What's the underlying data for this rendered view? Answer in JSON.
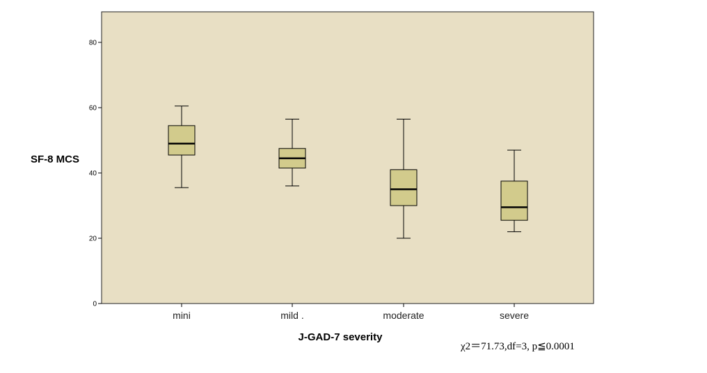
{
  "chart_data": {
    "type": "box",
    "ylabel": "SF-8 MCS",
    "xlabel": "J-GAD-7 severity",
    "ylim": [
      0,
      88
    ],
    "yticks": [
      0,
      20,
      40,
      60,
      80
    ],
    "categories": [
      "mini",
      "mild .",
      "moderate",
      "severe"
    ],
    "boxes": [
      {
        "min": 35.5,
        "q1": 45.5,
        "median": 49,
        "q3": 54.5,
        "max": 60.5
      },
      {
        "min": 36,
        "q1": 41.5,
        "median": 44.5,
        "q3": 47.5,
        "max": 56.5
      },
      {
        "min": 20,
        "q1": 30,
        "median": 35,
        "q3": 41,
        "max": 56.5
      },
      {
        "min": 22,
        "q1": 25.5,
        "median": 29.5,
        "q3": 37.5,
        "max": 47
      }
    ],
    "annotation": "χ2＝71.73,df=3, p≦0.0001",
    "colors": {
      "plot_bg": "#e8dfc4",
      "box_fill": "#d2cb8c",
      "stroke": "#000000"
    },
    "grid": false
  }
}
